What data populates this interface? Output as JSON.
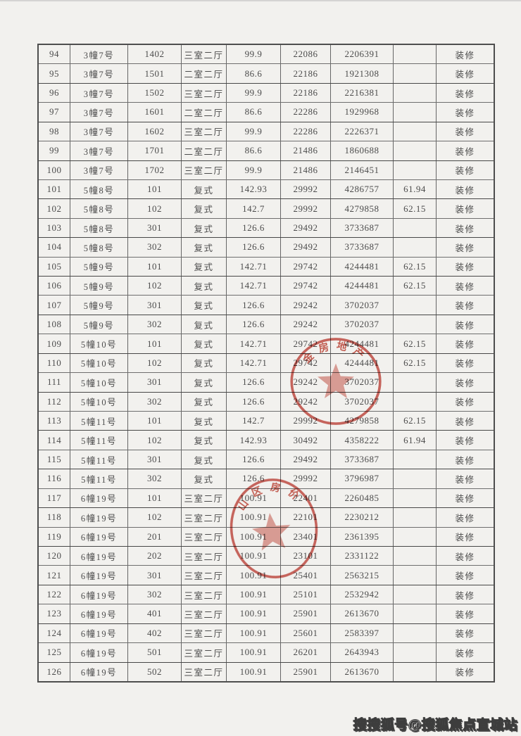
{
  "colors": {
    "paper": "#f2f1ee",
    "ink": "#4c4c4c",
    "grid_line": "#666666",
    "seal_red": "#c5443a",
    "watermark_fill": "#fbfbfb",
    "watermark_outline": "#3d3d3d"
  },
  "table": {
    "column_keys": [
      "serial_no",
      "building_no",
      "room_no",
      "layout",
      "area_sqm",
      "unit_price",
      "total_price",
      "extra_area",
      "decoration"
    ],
    "rows": [
      [
        "94",
        "3幢7号",
        "1402",
        "三室二厅",
        "99.9",
        "22086",
        "2206391",
        "",
        "装修"
      ],
      [
        "95",
        "3幢7号",
        "1501",
        "二室二厅",
        "86.6",
        "22186",
        "1921308",
        "",
        "装修"
      ],
      [
        "96",
        "3幢7号",
        "1502",
        "三室二厅",
        "99.9",
        "22186",
        "2216381",
        "",
        "装修"
      ],
      [
        "97",
        "3幢7号",
        "1601",
        "二室二厅",
        "86.6",
        "22286",
        "1929968",
        "",
        "装修"
      ],
      [
        "98",
        "3幢7号",
        "1602",
        "三室二厅",
        "99.9",
        "22286",
        "2226371",
        "",
        "装修"
      ],
      [
        "99",
        "3幢7号",
        "1701",
        "二室二厅",
        "86.6",
        "21486",
        "1860688",
        "",
        "装修"
      ],
      [
        "100",
        "3幢7号",
        "1702",
        "三室二厅",
        "99.9",
        "21486",
        "2146451",
        "",
        "装修"
      ],
      [
        "101",
        "5幢8号",
        "101",
        "复式",
        "142.93",
        "29992",
        "4286757",
        "61.94",
        "装修"
      ],
      [
        "102",
        "5幢8号",
        "102",
        "复式",
        "142.7",
        "29992",
        "4279858",
        "62.15",
        "装修"
      ],
      [
        "103",
        "5幢8号",
        "301",
        "复式",
        "126.6",
        "29492",
        "3733687",
        "",
        "装修"
      ],
      [
        "104",
        "5幢8号",
        "302",
        "复式",
        "126.6",
        "29492",
        "3733687",
        "",
        "装修"
      ],
      [
        "105",
        "5幢9号",
        "101",
        "复式",
        "142.71",
        "29742",
        "4244481",
        "62.15",
        "装修"
      ],
      [
        "106",
        "5幢9号",
        "102",
        "复式",
        "142.71",
        "29742",
        "4244481",
        "62.15",
        "装修"
      ],
      [
        "107",
        "5幢9号",
        "301",
        "复式",
        "126.6",
        "29242",
        "3702037",
        "",
        "装修"
      ],
      [
        "108",
        "5幢9号",
        "302",
        "复式",
        "126.6",
        "29242",
        "3702037",
        "",
        "装修"
      ],
      [
        "109",
        "5幢10号",
        "101",
        "复式",
        "142.71",
        "29742",
        "4244481",
        "62.15",
        "装修"
      ],
      [
        "110",
        "5幢10号",
        "102",
        "复式",
        "142.71",
        "29742",
        "4244481",
        "62.15",
        "装修"
      ],
      [
        "111",
        "5幢10号",
        "301",
        "复式",
        "126.6",
        "29242",
        "3702037",
        "",
        "装修"
      ],
      [
        "112",
        "5幢10号",
        "302",
        "复式",
        "126.6",
        "29242",
        "3702037",
        "",
        "装修"
      ],
      [
        "113",
        "5幢11号",
        "101",
        "复式",
        "142.7",
        "29992",
        "4279858",
        "62.15",
        "装修"
      ],
      [
        "114",
        "5幢11号",
        "102",
        "复式",
        "142.93",
        "30492",
        "4358222",
        "61.94",
        "装修"
      ],
      [
        "115",
        "5幢11号",
        "301",
        "复式",
        "126.6",
        "29492",
        "3733687",
        "",
        "装修"
      ],
      [
        "116",
        "5幢11号",
        "302",
        "复式",
        "126.6",
        "29992",
        "3796987",
        "",
        "装修"
      ],
      [
        "117",
        "6幢19号",
        "101",
        "三室二厅",
        "100.91",
        "22401",
        "2260485",
        "",
        "装修"
      ],
      [
        "118",
        "6幢19号",
        "102",
        "三室二厅",
        "100.91",
        "22101",
        "2230212",
        "",
        "装修"
      ],
      [
        "119",
        "6幢19号",
        "201",
        "三室二厅",
        "100.91",
        "23401",
        "2361395",
        "",
        "装修"
      ],
      [
        "120",
        "6幢19号",
        "202",
        "三室二厅",
        "100.91",
        "23101",
        "2331122",
        "",
        "装修"
      ],
      [
        "121",
        "6幢19号",
        "301",
        "三室二厅",
        "100.91",
        "25401",
        "2563215",
        "",
        "装修"
      ],
      [
        "122",
        "6幢19号",
        "302",
        "三室二厅",
        "100.91",
        "25101",
        "2532942",
        "",
        "装修"
      ],
      [
        "123",
        "6幢19号",
        "401",
        "三室二厅",
        "100.91",
        "25901",
        "2613670",
        "",
        "装修"
      ],
      [
        "124",
        "6幢19号",
        "402",
        "三室二厅",
        "100.91",
        "25601",
        "2583397",
        "",
        "装修"
      ],
      [
        "125",
        "6幢19号",
        "501",
        "三室二厅",
        "100.91",
        "26201",
        "2643943",
        "",
        "装修"
      ],
      [
        "126",
        "6幢19号",
        "502",
        "三室二厅",
        "100.91",
        "25901",
        "2613670",
        "",
        "装修"
      ]
    ]
  },
  "stamps": {
    "company_seal": {
      "rim_text_visible": "金房地产"
    },
    "gov_seal": {
      "rim_text_visible": "山区房价"
    }
  },
  "watermark": {
    "text": "搜搜狐号@搜狐焦点宣城站"
  }
}
